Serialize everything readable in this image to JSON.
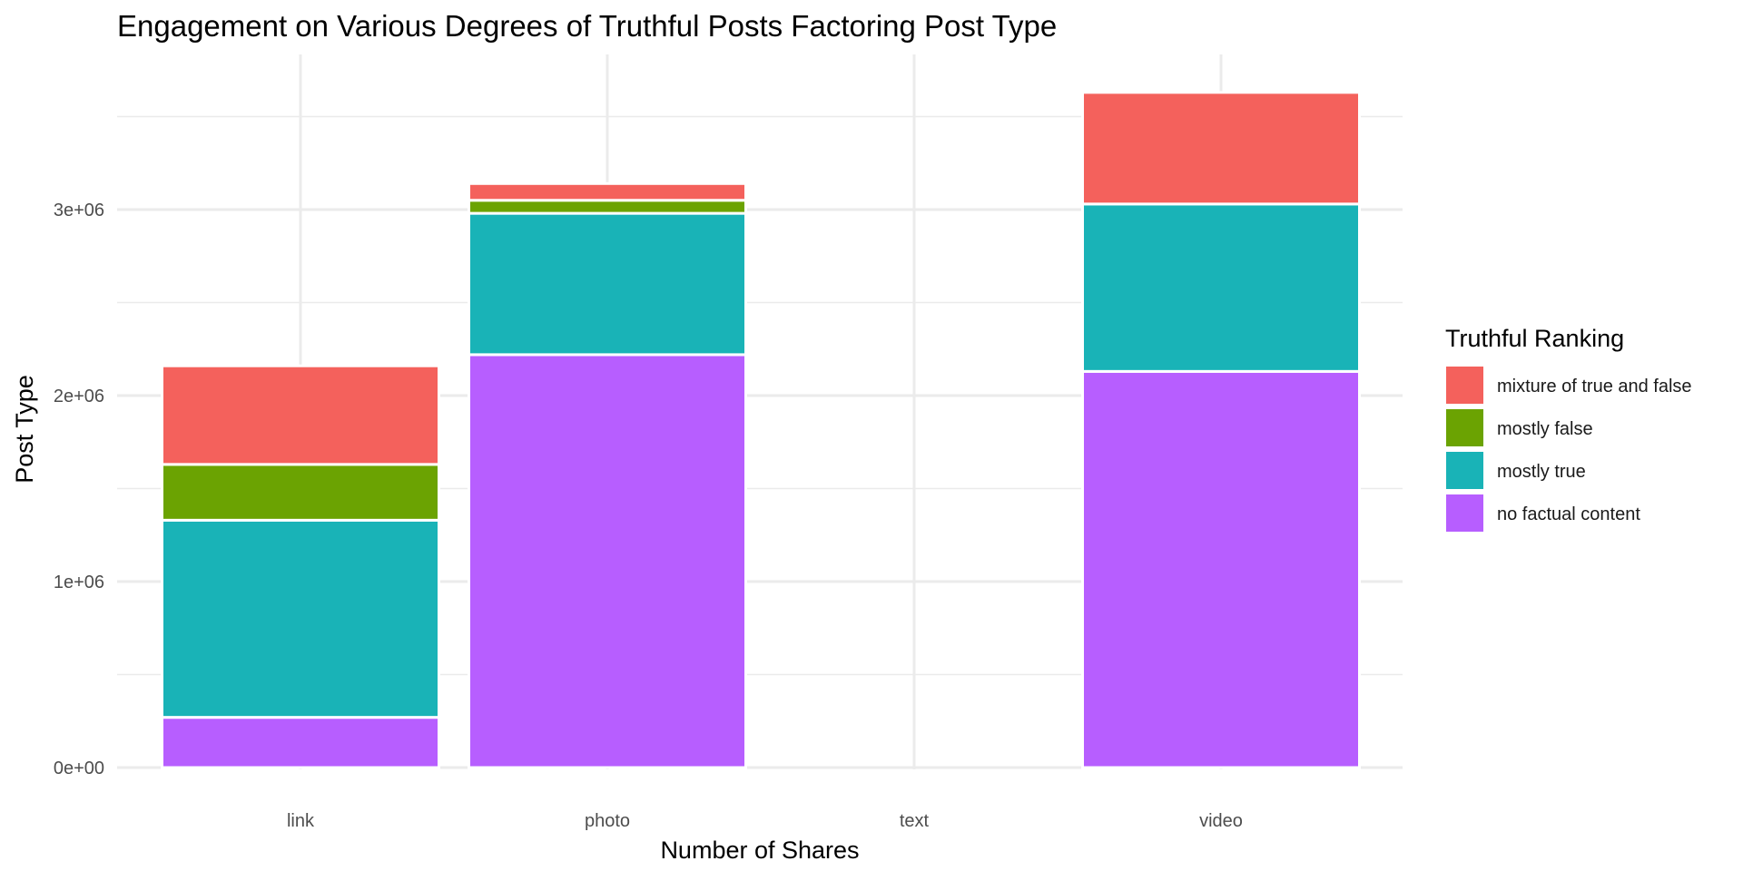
{
  "chart_data": {
    "type": "bar",
    "stacked": true,
    "title": "Engagement on Various Degrees of Truthful Posts Factoring Post Type",
    "xlabel": "Number of Shares",
    "ylabel": "Post Type",
    "categories": [
      "link",
      "photo",
      "text",
      "video"
    ],
    "ylim": [
      0,
      3800000
    ],
    "y_ticks": [
      0,
      1000000,
      2000000,
      3000000
    ],
    "y_tick_labels": [
      "0e+00",
      "1e+06",
      "2e+06",
      "3e+06"
    ],
    "grid": true,
    "legend": {
      "title": "Truthful Ranking",
      "position": "right"
    },
    "series": [
      {
        "name": "no factual content",
        "color": "#B75EFF",
        "values": [
          270000,
          2220000,
          0,
          2130000
        ]
      },
      {
        "name": "mostly true",
        "color": "#19B3B7",
        "values": [
          1060000,
          760000,
          0,
          900000
        ]
      },
      {
        "name": "mostly false",
        "color": "#6BA302",
        "values": [
          300000,
          70000,
          0,
          0
        ]
      },
      {
        "name": "mixture of true and false",
        "color": "#F4615C",
        "values": [
          530000,
          90000,
          0,
          600000
        ]
      }
    ],
    "legend_order": [
      "mixture of true and false",
      "mostly false",
      "mostly true",
      "no factual content"
    ]
  }
}
